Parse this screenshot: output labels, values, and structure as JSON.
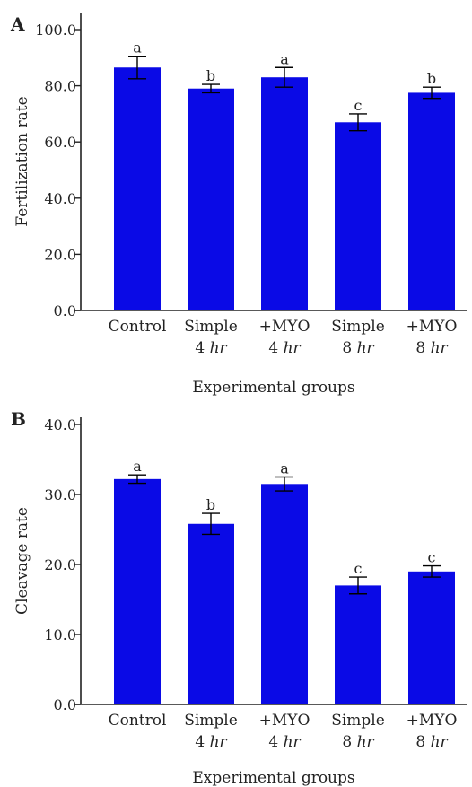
{
  "colors": {
    "bar": "#0a0ae6",
    "axis": "#222222",
    "error": "#000000"
  },
  "chart_data": [
    {
      "panel": "A",
      "type": "bar",
      "title": "",
      "xlabel": "Experimental groups",
      "ylabel": "Fertilization rate",
      "ylim": [
        0,
        100
      ],
      "yticks": [
        "0.0",
        "20.0",
        "40.0",
        "60.0",
        "80.0",
        "100.0"
      ],
      "categories": [
        {
          "line1": "Control",
          "line2_prefix": "",
          "line2_em": ""
        },
        {
          "line1": "Simple",
          "line2_prefix": "4 ",
          "line2_em": "hr"
        },
        {
          "line1": "+MYO",
          "line2_prefix": "4 ",
          "line2_em": "hr"
        },
        {
          "line1": "Simple",
          "line2_prefix": "8 ",
          "line2_em": "hr"
        },
        {
          "line1": "+MYO",
          "line2_prefix": "8 ",
          "line2_em": "hr"
        }
      ],
      "values": [
        86.5,
        79.0,
        83.0,
        67.0,
        77.5
      ],
      "errors": [
        4.0,
        1.5,
        3.5,
        3.0,
        2.0
      ],
      "significance": [
        "a",
        "b",
        "a",
        "c",
        "b"
      ],
      "grid": false,
      "legend": "none"
    },
    {
      "panel": "B",
      "type": "bar",
      "title": "",
      "xlabel": "Experimental groups",
      "ylabel": "Cleavage rate",
      "ylim": [
        0,
        40
      ],
      "yticks": [
        "0.0",
        "10.0",
        "20.0",
        "30.0",
        "40.0"
      ],
      "categories": [
        {
          "line1": "Control",
          "line2_prefix": "",
          "line2_em": ""
        },
        {
          "line1": "Simple",
          "line2_prefix": "4 ",
          "line2_em": "hr"
        },
        {
          "line1": "+MYO",
          "line2_prefix": "4 ",
          "line2_em": "hr"
        },
        {
          "line1": "Simple",
          "line2_prefix": "8 ",
          "line2_em": "hr"
        },
        {
          "line1": "+MYO",
          "line2_prefix": "8 ",
          "line2_em": "hr"
        }
      ],
      "values": [
        32.2,
        25.8,
        31.5,
        17.0,
        19.0
      ],
      "errors": [
        0.6,
        1.5,
        1.0,
        1.2,
        0.8
      ],
      "significance": [
        "a",
        "b",
        "a",
        "c",
        "c"
      ],
      "grid": false,
      "legend": "none"
    }
  ]
}
